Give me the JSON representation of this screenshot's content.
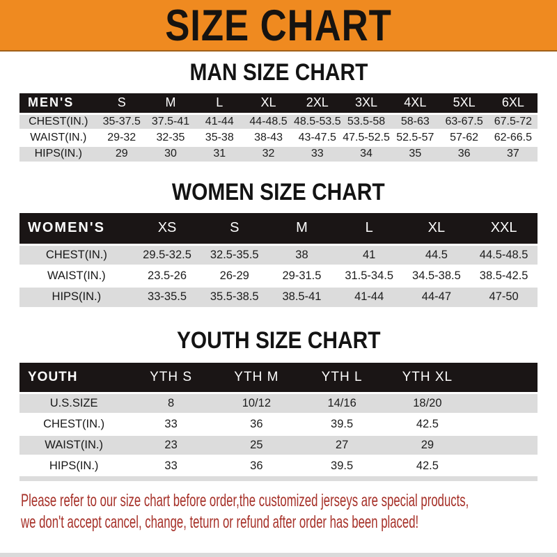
{
  "banner": {
    "title": "SIZE CHART"
  },
  "colors": {
    "banner_bg": "#EF8A20",
    "header_bg": "#1A1515",
    "row_gray": "#DCDCDC",
    "disclaimer_red": "#A63028"
  },
  "tables": [
    {
      "id": "men",
      "title": "MAN SIZE CHART",
      "corner_label": "MEN'S",
      "columns": [
        "S",
        "M",
        "L",
        "XL",
        "2XL",
        "3XL",
        "4XL",
        "5XL",
        "6XL"
      ],
      "rows": [
        {
          "label": "CHEST(IN.)",
          "values": [
            "35-37.5",
            "37.5-41",
            "41-44",
            "44-48.5",
            "48.5-53.5",
            "53.5-58",
            "58-63",
            "63-67.5",
            "67.5-72"
          ]
        },
        {
          "label": "WAIST(IN.)",
          "values": [
            "29-32",
            "32-35",
            "35-38",
            "38-43",
            "43-47.5",
            "47.5-52.5",
            "52.5-57",
            "57-62",
            "62-66.5"
          ]
        },
        {
          "label": "HIPS(IN.)",
          "values": [
            "29",
            "30",
            "31",
            "32",
            "33",
            "34",
            "35",
            "36",
            "37"
          ]
        }
      ]
    },
    {
      "id": "women",
      "title": "WOMEN SIZE CHART",
      "corner_label": "WOMEN'S",
      "columns": [
        "XS",
        "S",
        "M",
        "L",
        "XL",
        "XXL"
      ],
      "rows": [
        {
          "label": "CHEST(IN.)",
          "values": [
            "29.5-32.5",
            "32.5-35.5",
            "38",
            "41",
            "44.5",
            "44.5-48.5"
          ]
        },
        {
          "label": "WAIST(IN.)",
          "values": [
            "23.5-26",
            "26-29",
            "29-31.5",
            "31.5-34.5",
            "34.5-38.5",
            "38.5-42.5"
          ]
        },
        {
          "label": "HIPS(IN.)",
          "values": [
            "33-35.5",
            "35.5-38.5",
            "38.5-41",
            "41-44",
            "44-47",
            "47-50"
          ]
        }
      ]
    },
    {
      "id": "youth",
      "title": "YOUTH SIZE CHART",
      "corner_label": "YOUTH",
      "columns": [
        "YTH S",
        "YTH M",
        "YTH L",
        "YTH XL"
      ],
      "rows": [
        {
          "label": "U.S.SIZE",
          "values": [
            "8",
            "10/12",
            "14/16",
            "18/20"
          ]
        },
        {
          "label": "CHEST(IN.)",
          "values": [
            "33",
            "36",
            "39.5",
            "42.5"
          ]
        },
        {
          "label": "WAIST(IN.)",
          "values": [
            "23",
            "25",
            "27",
            "29"
          ]
        },
        {
          "label": "HIPS(IN.)",
          "values": [
            "33",
            "36",
            "39.5",
            "42.5"
          ]
        }
      ]
    }
  ],
  "disclaimer": {
    "line1": "Please refer to our size chart before order,the customized jerseys are special products,",
    "line2": "we don't accept cancel, change, teturn or refund after order has been placed!"
  }
}
